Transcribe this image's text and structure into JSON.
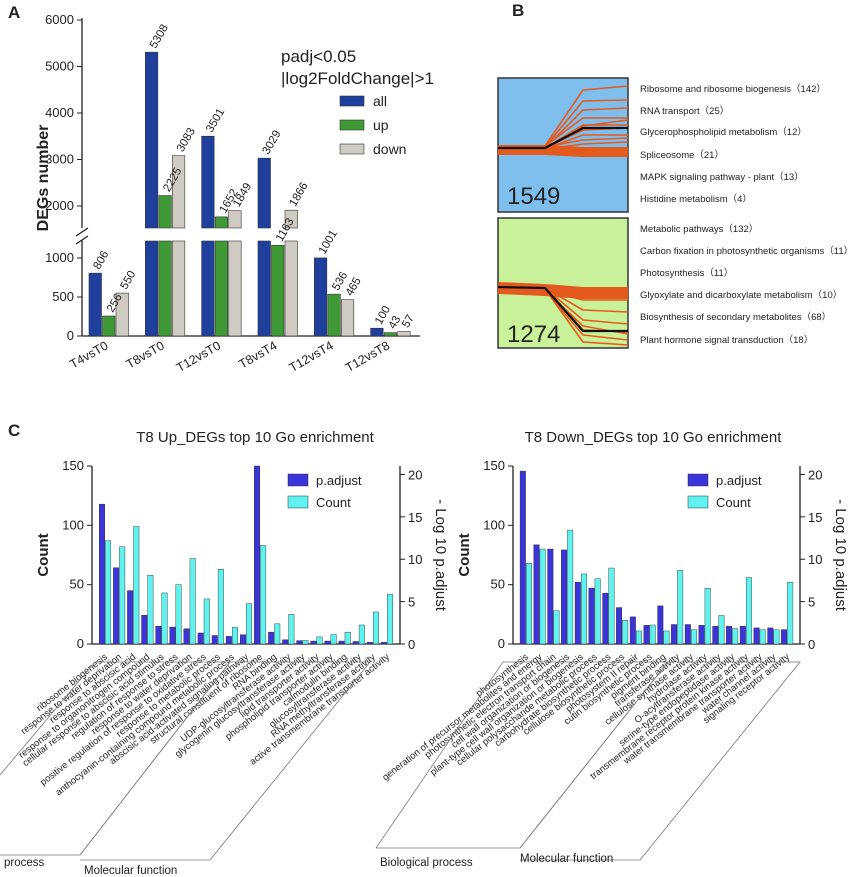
{
  "panel_labels": {
    "a": "A",
    "b": "B",
    "c": "C"
  },
  "colors": {
    "all": "#1f3f9c",
    "up": "#3f9a35",
    "down": "#cfcbc2",
    "profile_a_bg": "#7fbfee",
    "profile_b_bg": "#c9f19a",
    "profile_line": "#e45a1c",
    "padjust": "#3b35d9",
    "count": "#5ff2ee"
  },
  "chart_data": [
    {
      "id": "A",
      "type": "bar",
      "ylabel": "DEGs number",
      "annotation": [
        "padj<0.05",
        "|log2FoldChange|>1"
      ],
      "categories": [
        "T4vsT0",
        "T8vsT0",
        "T12vsT0",
        "T8vsT4",
        "T12vsT4",
        "T12vsT8"
      ],
      "series": [
        {
          "name": "all",
          "values": [
            806,
            5308,
            3501,
            3029,
            1001,
            100
          ],
          "labels": [
            "806",
            "5308",
            "3501",
            "3029",
            "1001",
            "100"
          ]
        },
        {
          "name": "up",
          "values": [
            256,
            2225,
            1652,
            1163,
            536,
            43
          ],
          "labels": [
            "256",
            "2225",
            "1652",
            "1163",
            "536",
            "43"
          ]
        },
        {
          "name": "down",
          "values": [
            550,
            3083,
            1849,
            1866,
            465,
            57
          ],
          "labels": [
            "550",
            "3083",
            "1849",
            "1866",
            "465",
            "57"
          ]
        }
      ],
      "y_ticks_upper": [
        "2000",
        "3000",
        "4000",
        "5000",
        "6000"
      ],
      "y_ticks_lower": [
        "0",
        "500",
        "1000"
      ],
      "y_break": [
        1200,
        1500
      ],
      "legend_position": "top-right"
    },
    {
      "id": "B",
      "type": "line",
      "clusters": [
        {
          "count_label": "1549",
          "pathways": [
            "Ribosome and ribosome biogenesis（142）",
            "RNA transport（25）",
            "Glycerophospholipid metabolism（12）",
            "Spliceosome（21）",
            "MAPK signaling pathway - plant（13）",
            "Histidine metabolism（4）"
          ]
        },
        {
          "count_label": "1274",
          "pathways": [
            "Metabolic pathways（132）",
            "Carbon fixation in photosynthetic organisms（11）",
            "Photosynthesis（11）",
            "Glyoxylate and dicarboxylate metabolism（10）",
            "Biosynthesis of secondary metabolites（68）",
            "Plant hormone signal transduction（18）"
          ]
        }
      ]
    },
    {
      "id": "C1",
      "type": "bar",
      "title": "T8 Up_DEGs top 10 Go enrichment",
      "ylabel": "Count",
      "y2label": "- Log 10 p.adjust",
      "y_ticks": [
        "0",
        "50",
        "100",
        "150"
      ],
      "y2_ticks": [
        "0",
        "5",
        "10",
        "15",
        "20"
      ],
      "ylim": [
        0,
        150
      ],
      "y2lim": [
        0,
        21
      ],
      "legend": [
        "p.adjust",
        "Count"
      ],
      "categories": [
        "ribosome biogenesis",
        "response to water deprivation",
        "response to abscisic acid",
        "response to organonitrogen compound",
        "cellular response to abscisic acid stimulus",
        "regulation of response to stress",
        "response to water deprivation",
        "positive regulation of response to oxidative stress",
        "response to metabolic process",
        "anthocyanin-containing compound metabolic process",
        "abscisic acid-activated signaling pathway",
        "structural constituent of ribosome",
        "RNA binding",
        "UDP-glucosyltransferase activity",
        "glycogenin glucosyltransferase activity",
        "lipid transporter activity",
        "phospholipid transporter activity",
        "calmodulin binding",
        "glucosyltransferase activity",
        "RNA methyltransferase activity",
        "active transmembrane transporter activity"
      ],
      "count": [
        87,
        82,
        99,
        58,
        43,
        50,
        72,
        38,
        63,
        14,
        34,
        83,
        17,
        25,
        3,
        6,
        8,
        10,
        16,
        27,
        42
      ],
      "neg_log10_padjust": [
        16.5,
        9,
        6.3,
        3.4,
        2.1,
        2,
        1.8,
        1.3,
        1,
        0.9,
        1.1,
        21,
        1.4,
        0.5,
        0.4,
        0.35,
        0.35,
        0.35,
        0.3,
        0.2,
        0.2
      ],
      "groups": [
        "process",
        "Molecular function"
      ]
    },
    {
      "id": "C2",
      "type": "bar",
      "title": "T8 Down_DEGs top 10 Go enrichment",
      "ylabel": "Count",
      "y2label": "- Log 10 p.adjust",
      "y_ticks": [
        "0",
        "50",
        "100",
        "150"
      ],
      "y2_ticks": [
        "0",
        "5",
        "10",
        "15",
        "20"
      ],
      "ylim": [
        0,
        150
      ],
      "y2lim": [
        0,
        21
      ],
      "legend": [
        "p.adjust",
        "Count"
      ],
      "categories": [
        "photosynthesis",
        "generation of precursor metabolites and energy",
        "photosynthetic electron transport chain",
        "cell wall organization or biogenesis",
        "plant-type cell wall organization or biogenesis",
        "cellular polysaccharide metabolic process",
        "carbohydrate biosynthetic process",
        "cellulose biosynthetic process",
        "photosystem II repair",
        "cutin biosynthetic process",
        "pigment binding",
        "transferase activity",
        "cellulose synthase activity",
        "hydrolase activity",
        "O-acyltransferase activity",
        "serine-type endopeptidase activity",
        "transmembrane receptor protein kinase activity",
        "water transmembrane transporter activity",
        "water channel activity",
        "signaling receptor activity"
      ],
      "count": [
        68,
        80,
        28,
        96,
        59,
        55,
        64,
        20,
        11,
        16,
        11,
        62,
        12,
        47,
        24,
        13,
        56,
        12,
        12,
        52
      ],
      "neg_log10_padjust": [
        20.4,
        11.7,
        11.2,
        11.1,
        7.3,
        6.6,
        6,
        4.3,
        3.2,
        2.2,
        4.5,
        2.3,
        2.3,
        2.2,
        2.1,
        2.1,
        2.1,
        1.9,
        1.9,
        1.7
      ],
      "groups": [
        "Biological process",
        "Molecular function"
      ]
    }
  ]
}
